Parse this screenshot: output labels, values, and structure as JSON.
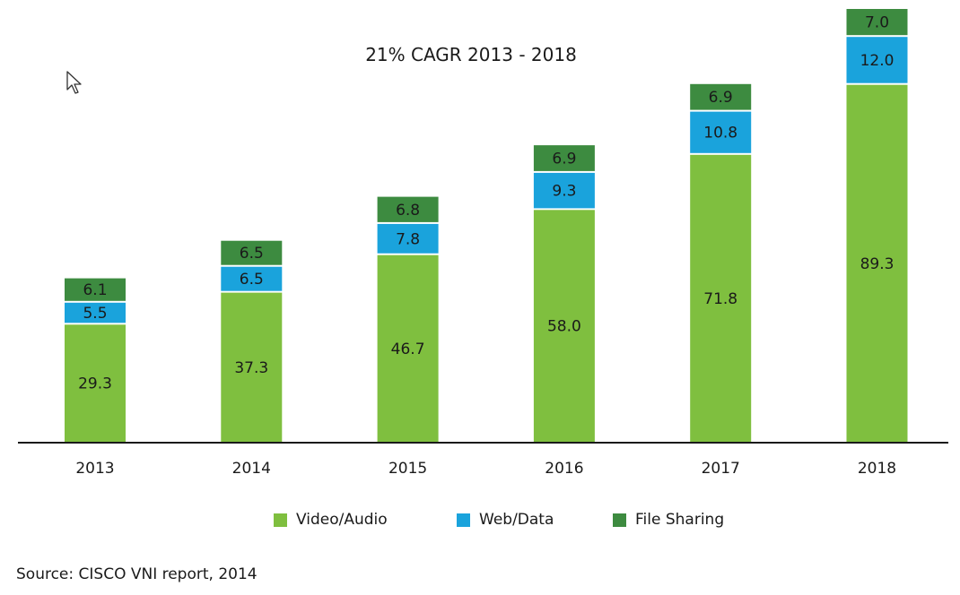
{
  "chart_data": {
    "type": "bar",
    "stacked": true,
    "title": "21% CAGR 2013 - 2018",
    "categories": [
      "2013",
      "2014",
      "2015",
      "2016",
      "2017",
      "2018"
    ],
    "series": [
      {
        "name": "Video/Audio",
        "color": "#7fbf3f",
        "values": [
          29.3,
          37.3,
          46.7,
          58.0,
          71.8,
          89.3
        ]
      },
      {
        "name": "Web/Data",
        "color": "#1aa3dc",
        "values": [
          5.5,
          6.5,
          7.8,
          9.3,
          10.8,
          12.0
        ]
      },
      {
        "name": "File Sharing",
        "color": "#3d8b40",
        "values": [
          6.1,
          6.5,
          6.8,
          6.9,
          6.9,
          7.0
        ]
      }
    ],
    "ylim": [
      0,
      108.3
    ],
    "xlabel": "",
    "ylabel": "",
    "grid": false,
    "legend": "bottom"
  },
  "legend": {
    "items": [
      {
        "label": "Video/Audio",
        "color": "#7fbf3f"
      },
      {
        "label": "Web/Data",
        "color": "#1aa3dc"
      },
      {
        "label": "File Sharing",
        "color": "#3d8b40"
      }
    ]
  },
  "source": "Source: CISCO VNI report, 2014"
}
